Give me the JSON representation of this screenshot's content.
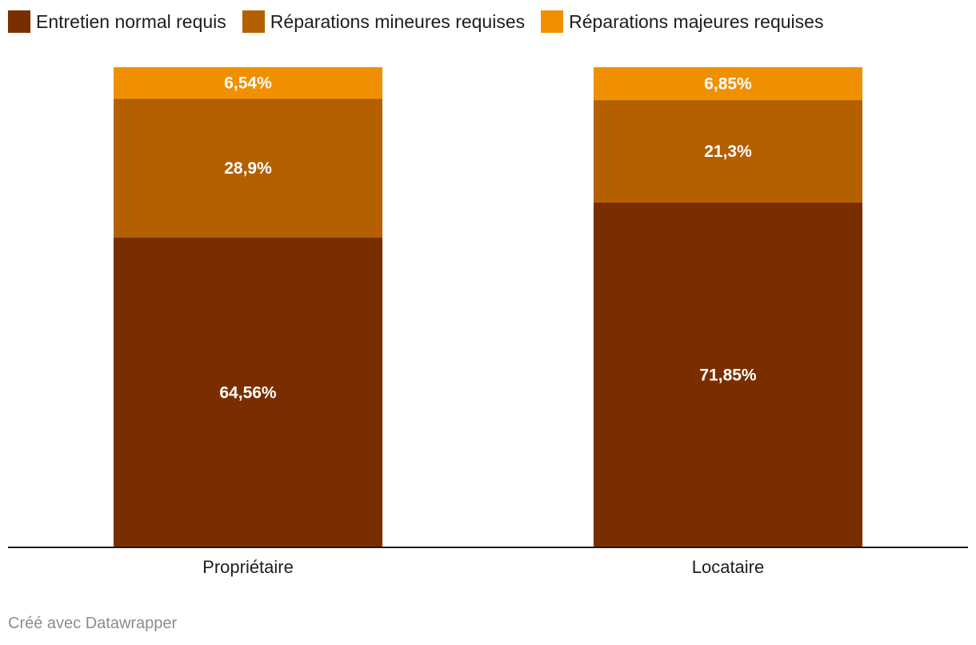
{
  "chart_data": {
    "type": "bar",
    "stacked": true,
    "categories": [
      "Propriétaire",
      "Locataire"
    ],
    "series": [
      {
        "name": "Entretien normal requis",
        "color": "#7a2e00",
        "values": [
          64.56,
          71.85
        ],
        "labels": [
          "64,56%",
          "71,85%"
        ]
      },
      {
        "name": "Réparations mineures requises",
        "color": "#b45f00",
        "values": [
          28.9,
          21.3
        ],
        "labels": [
          "28,9%",
          "21,3%"
        ]
      },
      {
        "name": "Réparations majeures requises",
        "color": "#f09000",
        "values": [
          6.54,
          6.85
        ],
        "labels": [
          "6,54%",
          "6,85%"
        ]
      }
    ],
    "ylim": [
      0,
      100
    ],
    "legend_position": "top-left",
    "grid": false
  },
  "footer": {
    "credit": "Créé avec Datawrapper"
  }
}
